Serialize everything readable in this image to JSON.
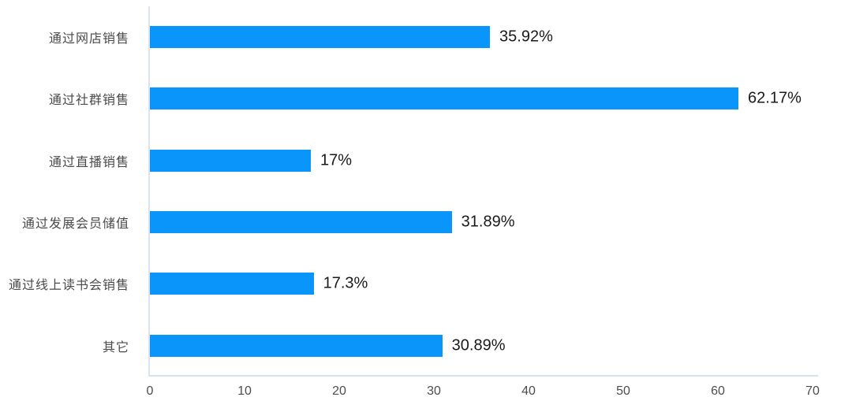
{
  "chart_data": {
    "type": "bar",
    "orientation": "horizontal",
    "title": "",
    "xlabel": "",
    "ylabel": "",
    "categories": [
      "通过网店销售",
      "通过社群销售",
      "通过直播销售",
      "通过发展会员储值",
      "通过线上读书会销售",
      "其它"
    ],
    "values": [
      35.92,
      62.17,
      17,
      31.89,
      17.3,
      30.89
    ],
    "value_labels": [
      "35.92%",
      "62.17%",
      "17%",
      "31.89%",
      "17.3%",
      "30.89%"
    ],
    "x_ticks": [
      "0",
      "10",
      "20",
      "30",
      "40",
      "50",
      "60",
      "70"
    ],
    "x_tick_values": [
      0,
      10,
      20,
      30,
      40,
      50,
      60,
      70
    ],
    "xlim": [
      0,
      70
    ],
    "grid": false,
    "legend": false,
    "colors": {
      "bar": "#0995fa",
      "y_axis_line": "#dde3f2",
      "x_axis_line": "#d9e1f1",
      "category_label": "#4a4a4a",
      "value_label": "#1a1a1a",
      "tick_label": "#4d4d4d"
    }
  }
}
